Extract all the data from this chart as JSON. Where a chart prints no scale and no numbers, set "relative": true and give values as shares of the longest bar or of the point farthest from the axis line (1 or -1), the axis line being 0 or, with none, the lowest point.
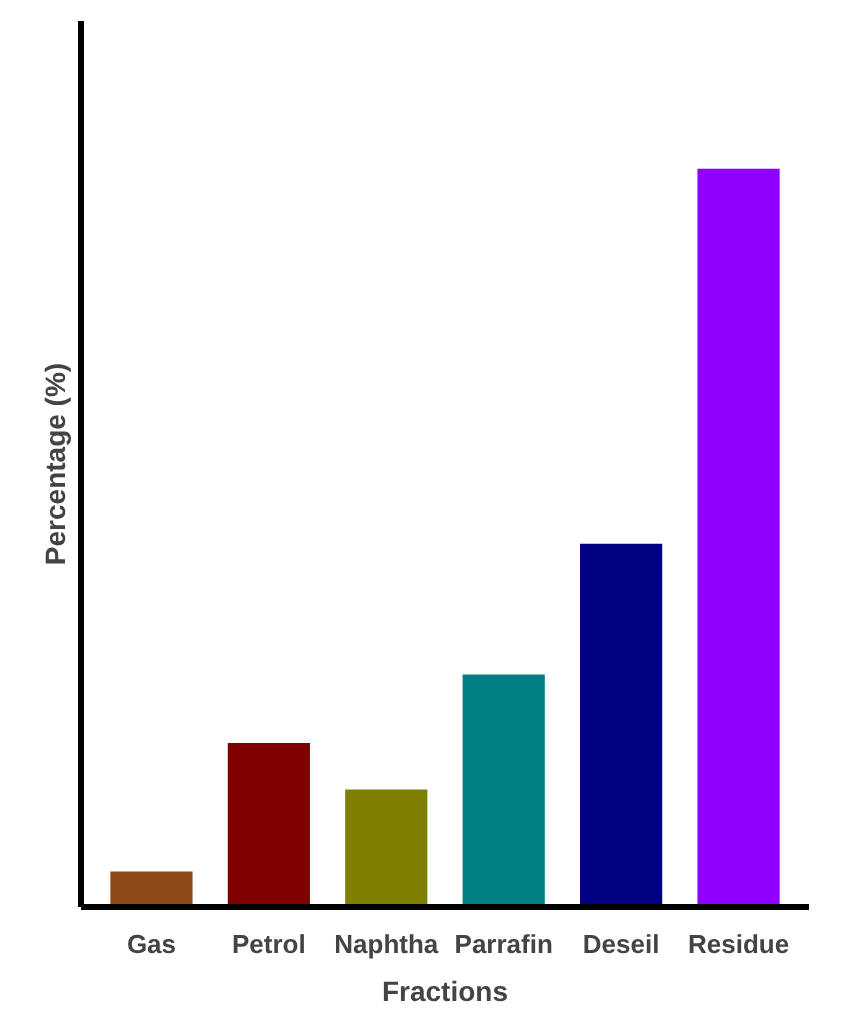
{
  "chart_data": {
    "type": "bar",
    "relative": true,
    "xlabel": "Fractions",
    "ylabel": "Percentage (%)",
    "categories": [
      "Gas",
      "Petrol",
      "Naphtha",
      "Parrafin",
      "Deseil",
      "Residue"
    ],
    "values": [
      0.048,
      0.222,
      0.159,
      0.315,
      0.492,
      1
    ],
    "colors": [
      "#8b4a14",
      "#800000",
      "#808000",
      "#008080",
      "#000080",
      "#8f00ff"
    ],
    "grid": false
  }
}
